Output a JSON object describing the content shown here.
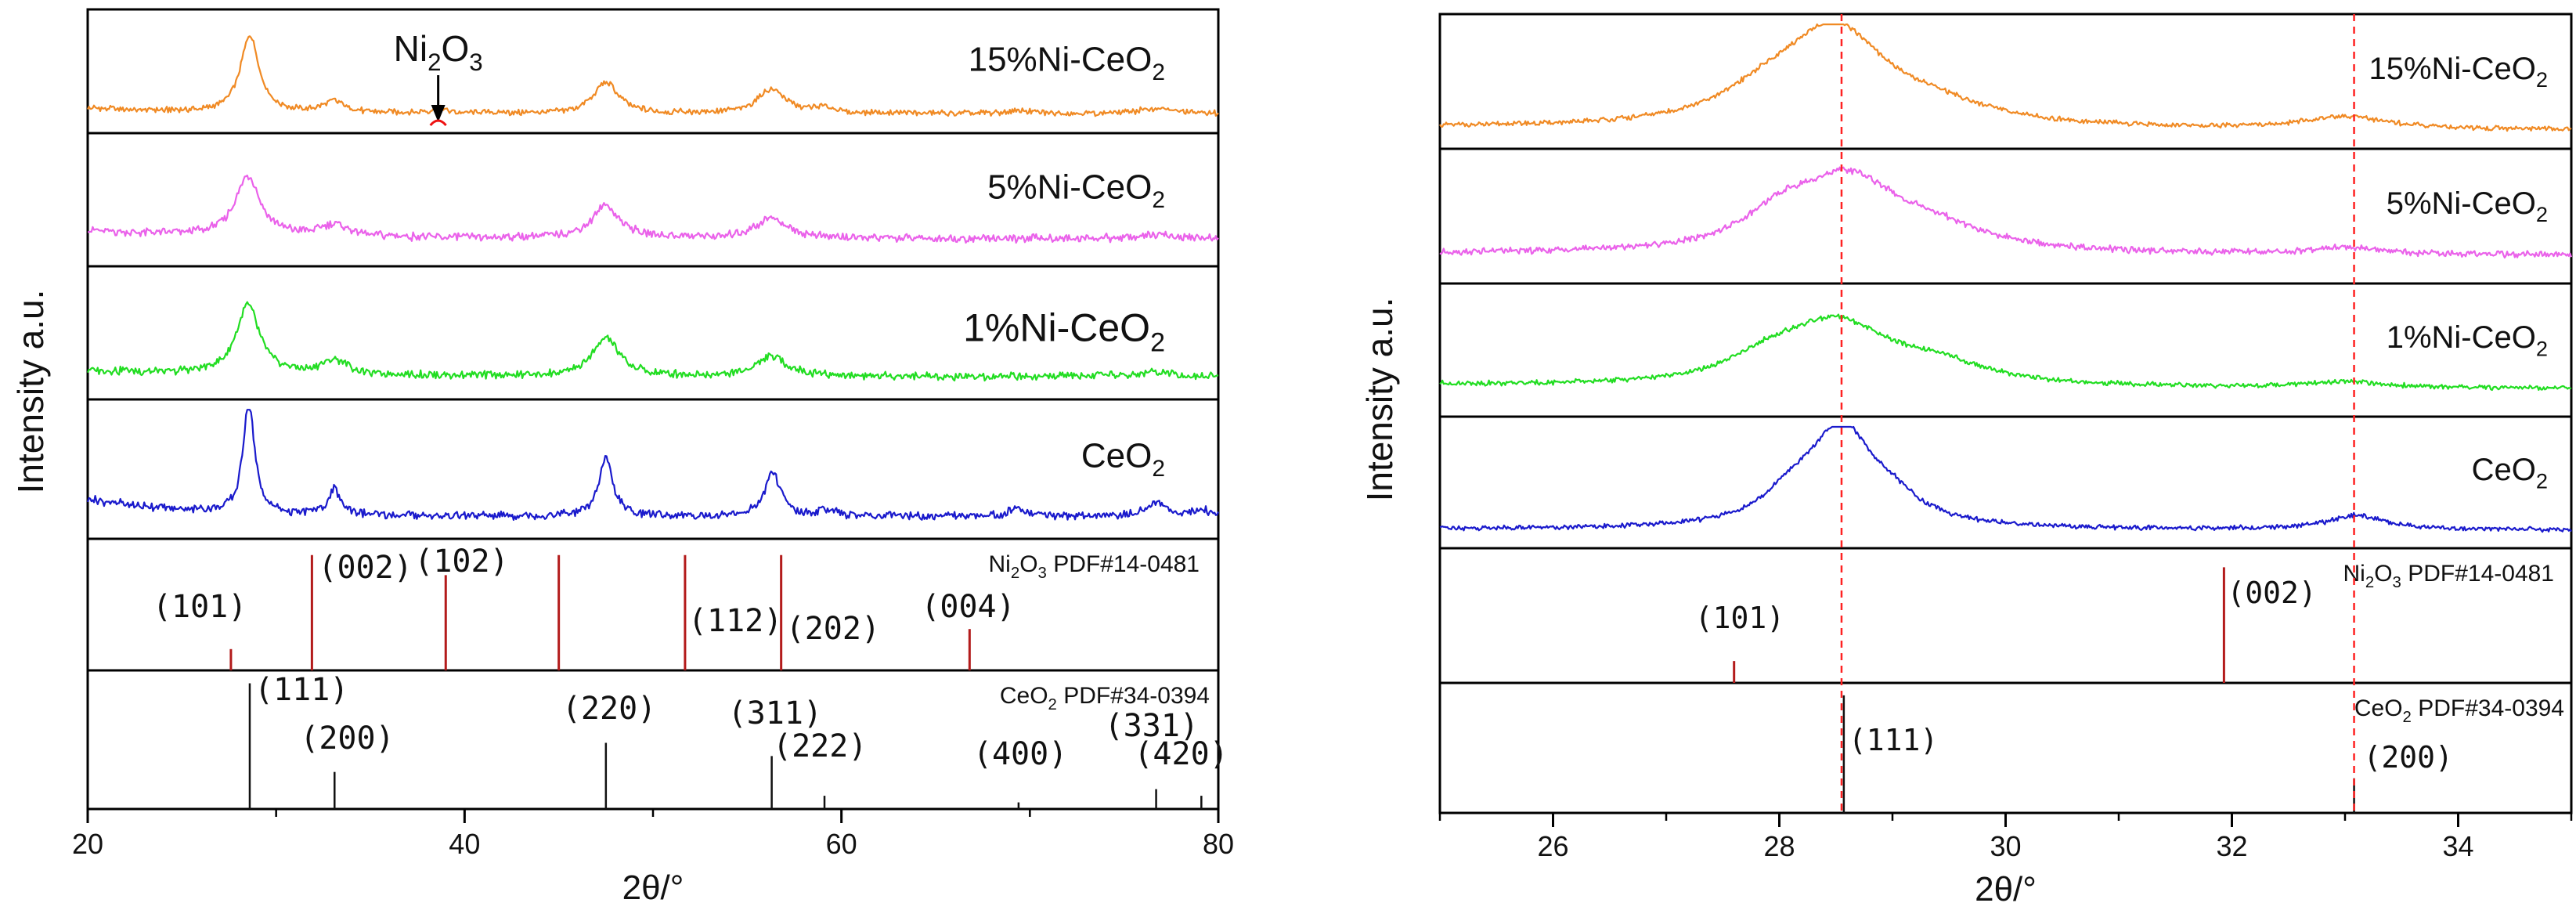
{
  "figure": {
    "ylabel": "Intensity a.u.",
    "xlabel": "2θ/°",
    "colors": {
      "p15": "#f08a24",
      "p5": "#ea62ea",
      "p1": "#22dd22",
      "ceo2": "#1a1acc",
      "ni2o3_ref": "#b31b1b",
      "ceo2_ref": "#111111",
      "marker_red": "#ee1111",
      "guide": "#ff2222"
    }
  },
  "ni2o3_note": {
    "text": "Ni",
    "sub1": "2",
    "mid": "O",
    "sub2": "3"
  },
  "chart_data": [
    {
      "type": "line",
      "panel": "left",
      "xlim": [
        20,
        80
      ],
      "xticks": [
        20,
        40,
        60,
        80
      ],
      "xtick_labels": [
        "20",
        "40",
        "60",
        "80"
      ],
      "series": [
        {
          "key": "p15",
          "name": "15%Ni-CeO2",
          "label": {
            "base": "15%Ni-CeO",
            "sub": "2"
          },
          "peaks": [
            [
              28.6,
              0.7,
              0.6
            ],
            [
              33.1,
              0.1,
              0.7
            ],
            [
              38.6,
              0.06,
              0.35
            ],
            [
              47.5,
              0.28,
              0.8
            ],
            [
              56.3,
              0.22,
              0.9
            ],
            [
              59.1,
              0.05,
              0.6
            ],
            [
              69.4,
              0.02,
              1.0
            ],
            [
              76.7,
              0.05,
              1.0
            ]
          ]
        },
        {
          "key": "p5",
          "name": "5%Ni-CeO2",
          "label": {
            "base": "5%Ni-CeO",
            "sub": "2"
          },
          "peaks": [
            [
              28.5,
              0.5,
              0.8
            ],
            [
              33.1,
              0.1,
              0.9
            ],
            [
              47.5,
              0.27,
              0.9
            ],
            [
              56.3,
              0.17,
              1.0
            ],
            [
              76.7,
              0.03,
              1.0
            ]
          ]
        },
        {
          "key": "p1",
          "name": "1%Ni-CeO2",
          "label": {
            "base": "1%Ni-CeO",
            "sub": "2"
          },
          "peaks": [
            [
              28.5,
              0.58,
              0.75
            ],
            [
              33.1,
              0.12,
              0.85
            ],
            [
              47.5,
              0.32,
              0.85
            ],
            [
              56.3,
              0.17,
              0.95
            ],
            [
              76.7,
              0.04,
              1.0
            ]
          ]
        },
        {
          "key": "ceo2",
          "name": "CeO2",
          "label": {
            "base": "CeO",
            "sub": "2"
          },
          "peaks": [
            [
              28.55,
              0.92,
              0.35
            ],
            [
              33.1,
              0.2,
              0.4
            ],
            [
              47.5,
              0.45,
              0.45
            ],
            [
              56.35,
              0.35,
              0.5
            ],
            [
              59.1,
              0.05,
              0.5
            ],
            [
              69.4,
              0.06,
              0.6
            ],
            [
              76.7,
              0.11,
              0.6
            ],
            [
              79.1,
              0.05,
              0.6
            ]
          ]
        }
      ],
      "ni2o3_ref": {
        "name": "Ni2O3 PDF#14-0481",
        "label": {
          "a": "Ni",
          "a_sub": "2",
          "b": "O",
          "b_sub": "3",
          "rest": " PDF#14-0481"
        },
        "sticks": [
          {
            "x": 27.6,
            "h": 0.17,
            "hkl": "(101)"
          },
          {
            "x": 31.9,
            "h": 0.92,
            "hkl": "(002)"
          },
          {
            "x": 39.0,
            "h": 0.76,
            "hkl": "(102)"
          },
          {
            "x": 45.0,
            "h": 0.92,
            "hkl": ""
          },
          {
            "x": 51.7,
            "h": 0.92,
            "hkl": "(112)"
          },
          {
            "x": 56.8,
            "h": 0.92,
            "hkl": "(202)"
          },
          {
            "x": 66.8,
            "h": 0.33,
            "hkl": "(004)"
          }
        ]
      },
      "ceo2_ref": {
        "name": "CeO2 PDF#34-0394",
        "label": {
          "a": "CeO",
          "a_sub": "2",
          "rest": " PDF#34-0394"
        },
        "sticks": [
          {
            "x": 28.6,
            "h": 0.95,
            "hkl": "(111)"
          },
          {
            "x": 33.1,
            "h": 0.28,
            "hkl": "(200)"
          },
          {
            "x": 47.5,
            "h": 0.5,
            "hkl": "(220)"
          },
          {
            "x": 56.3,
            "h": 0.4,
            "hkl": "(311)"
          },
          {
            "x": 59.1,
            "h": 0.1,
            "hkl": "(222)"
          },
          {
            "x": 69.4,
            "h": 0.05,
            "hkl": "(400)"
          },
          {
            "x": 76.7,
            "h": 0.15,
            "hkl": "(331)"
          },
          {
            "x": 79.1,
            "h": 0.1,
            "hkl": "(420)"
          }
        ]
      }
    },
    {
      "type": "line",
      "panel": "right",
      "xlim": [
        25,
        35
      ],
      "xticks": [
        26,
        28,
        30,
        32,
        34
      ],
      "xtick_labels": [
        "26",
        "28",
        "30",
        "32",
        "34"
      ],
      "guide_lines": [
        28.55,
        33.08
      ],
      "series": [
        {
          "key": "p15",
          "name": "15%Ni-CeO2",
          "label": {
            "base": "15%Ni-CeO",
            "sub": "2"
          },
          "peaks": [
            [
              28.5,
              0.78,
              0.55
            ],
            [
              27.9,
              0.2,
              0.5
            ],
            [
              29.4,
              0.12,
              0.6
            ],
            [
              33.0,
              0.1,
              0.45
            ]
          ]
        },
        {
          "key": "p5",
          "name": "5%Ni-CeO2",
          "label": {
            "base": "5%Ni-CeO",
            "sub": "2"
          },
          "peaks": [
            [
              28.6,
              0.62,
              0.6
            ],
            [
              28.0,
              0.2,
              0.35
            ],
            [
              29.4,
              0.12,
              0.5
            ],
            [
              33.0,
              0.05,
              0.4
            ]
          ]
        },
        {
          "key": "p1",
          "name": "1%Ni-CeO2",
          "label": {
            "base": "1%Ni-CeO",
            "sub": "2"
          },
          "peaks": [
            [
              28.5,
              0.52,
              0.6
            ],
            [
              27.9,
              0.15,
              0.4
            ],
            [
              29.4,
              0.14,
              0.5
            ],
            [
              33.0,
              0.05,
              0.4
            ]
          ]
        },
        {
          "key": "ceo2",
          "name": "CeO2",
          "label": {
            "base": "CeO",
            "sub": "2"
          },
          "peaks": [
            [
              28.55,
              0.82,
              0.35
            ],
            [
              28.1,
              0.2,
              0.3
            ],
            [
              29.0,
              0.15,
              0.3
            ],
            [
              33.1,
              0.12,
              0.3
            ]
          ]
        }
      ],
      "ni2o3_ref": {
        "name": "Ni2O3 PDF#14-0481",
        "label": {
          "a": "Ni",
          "a_sub": "2",
          "b": "O",
          "b_sub": "3",
          "rest": " PDF#14-0481"
        },
        "sticks": [
          {
            "x": 27.6,
            "h": 0.17,
            "hkl": "(101)"
          },
          {
            "x": 31.93,
            "h": 0.9,
            "hkl": "(002)"
          }
        ]
      },
      "ceo2_ref": {
        "name": "CeO2 PDF#34-0394",
        "label": {
          "a": "CeO",
          "a_sub": "2",
          "rest": " PDF#34-0394"
        },
        "sticks": [
          {
            "x": 28.57,
            "h": 0.95,
            "hkl": "(111)"
          },
          {
            "x": 33.08,
            "h": 0.28,
            "hkl": "(200)"
          }
        ]
      }
    }
  ]
}
